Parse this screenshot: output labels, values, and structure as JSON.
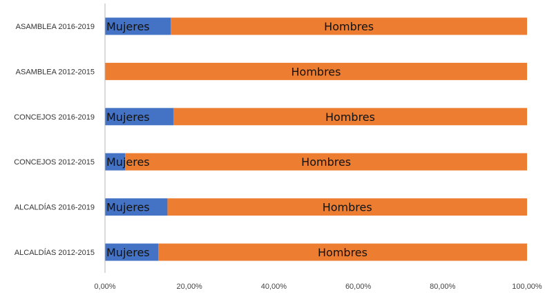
{
  "chart_data": {
    "type": "bar",
    "orientation": "horizontal",
    "stacked": true,
    "categories": [
      "ASAMBLEA 2016-2019",
      "ASAMBLEA 2012-2015",
      "CONCEJOS 2016-2019",
      "CONCEJOS 2012-2015",
      "ALCALDÍAS 2016-2019",
      "ALCALDÍAS 2012-2015"
    ],
    "series": [
      {
        "label": "Mujeres",
        "values": [
          15.6,
          0,
          16.2,
          4.8,
          14.8,
          12.6
        ],
        "color": "#4472C4"
      },
      {
        "label": "Hombres",
        "values": [
          84.4,
          100,
          83.8,
          95.2,
          85.2,
          87.4
        ],
        "color": "#ED7D31"
      }
    ],
    "xlim": [
      0,
      100
    ],
    "xticks": [
      "0,00%",
      "20,00%",
      "40,00%",
      "60,00%",
      "80,00%",
      "100,00%"
    ],
    "grid": false,
    "legend": "none"
  }
}
